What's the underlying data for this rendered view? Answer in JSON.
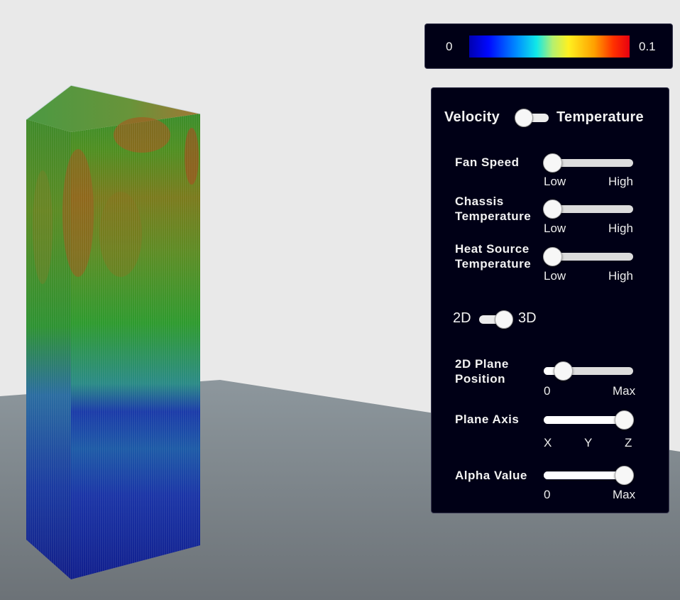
{
  "colorbar": {
    "min_label": "0",
    "max_label": "0.1"
  },
  "panel": {
    "mode_toggle": {
      "left_label": "Velocity",
      "right_label": "Temperature",
      "value": "Velocity"
    },
    "fan_speed": {
      "label": "Fan Speed",
      "low": "Low",
      "high": "High",
      "value": 0
    },
    "chassis_temperature": {
      "label_line1": "Chassis",
      "label_line2": "Temperature",
      "low": "Low",
      "high": "High",
      "value": 0
    },
    "heat_source_temperature": {
      "label_line1": "Heat Source",
      "label_line2": "Temperature",
      "low": "Low",
      "high": "High",
      "value": 0
    },
    "dimension_toggle": {
      "left_label": "2D",
      "right_label": "3D",
      "value": "3D"
    },
    "plane_position": {
      "label_line1": "2D Plane",
      "label_line2": "Position",
      "min": "0",
      "max": "Max",
      "value": 0.2
    },
    "plane_axis": {
      "label": "Plane Axis",
      "options": [
        "X",
        "Y",
        "Z"
      ],
      "value": "Z"
    },
    "alpha_value": {
      "label": "Alpha Value",
      "min": "0",
      "max": "Max",
      "value": 1.0
    }
  }
}
